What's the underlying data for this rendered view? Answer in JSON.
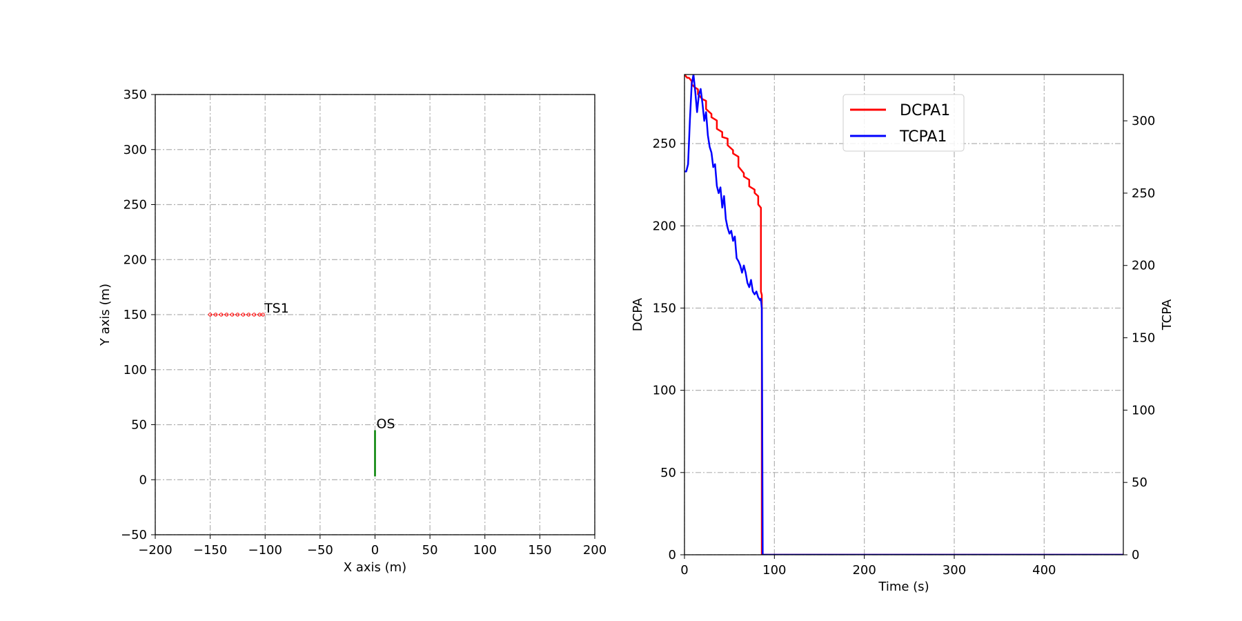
{
  "chart_data": [
    {
      "type": "line",
      "title": "",
      "xlabel": "X axis (m)",
      "ylabel": "Y axis (m)",
      "xlim": [
        -200,
        200
      ],
      "ylim": [
        -50,
        350
      ],
      "xticks": [
        -200,
        -150,
        -100,
        -50,
        0,
        50,
        100,
        150,
        200
      ],
      "yticks": [
        -50,
        0,
        50,
        100,
        150,
        200,
        250,
        300,
        350
      ],
      "grid": true,
      "series": [
        {
          "name": "TS1",
          "color": "#ff0000",
          "style": "dotted-markers",
          "x": [
            -150,
            -145,
            -140,
            -135,
            -130,
            -125,
            -120,
            -115,
            -110,
            -105,
            -102
          ],
          "y": [
            150,
            150,
            150,
            150,
            150,
            150,
            150,
            150,
            150,
            150,
            150
          ]
        },
        {
          "name": "OS",
          "color": "#008000",
          "style": "solid",
          "x": [
            0,
            0
          ],
          "y": [
            3,
            45
          ]
        }
      ],
      "annotations": [
        {
          "text": "TS1",
          "x": -102,
          "y": 150
        },
        {
          "text": "OS",
          "x": 0,
          "y": 45
        }
      ]
    },
    {
      "type": "line",
      "title": "",
      "xlabel": "Time (s)",
      "ylabel": "DCPA",
      "y2label": "TCPA",
      "xlim": [
        0,
        488
      ],
      "ylim": [
        0,
        292
      ],
      "y2lim": [
        0,
        332
      ],
      "xticks": [
        0,
        100,
        200,
        300,
        400
      ],
      "yticks": [
        0,
        50,
        100,
        150,
        200,
        250
      ],
      "y2ticks": [
        0,
        50,
        100,
        150,
        200,
        250,
        300
      ],
      "grid": true,
      "legend_position": "top-center",
      "series": [
        {
          "name": "DCPA1",
          "axis": "left",
          "color": "#ff0000",
          "x": [
            0,
            3,
            5,
            8,
            8,
            12,
            15,
            15,
            20,
            24,
            24,
            30,
            30,
            36,
            36,
            42,
            42,
            48,
            48,
            54,
            54,
            60,
            60,
            66,
            66,
            72,
            72,
            78,
            78,
            82,
            82,
            85,
            85,
            86,
            86,
            100,
            200,
            300,
            400,
            488
          ],
          "y": [
            292,
            290,
            290,
            288,
            286,
            284,
            283,
            280,
            277,
            276,
            271,
            268,
            266,
            264,
            259,
            257,
            254,
            253,
            249,
            246,
            244,
            242,
            236,
            232,
            230,
            228,
            224,
            222,
            220,
            218,
            213,
            211,
            160,
            158,
            0,
            0,
            0,
            0,
            0,
            0
          ]
        },
        {
          "name": "TCPA1",
          "axis": "right",
          "color": "#0000ff",
          "x": [
            0,
            2,
            4,
            6,
            8,
            10,
            12,
            14,
            16,
            18,
            20,
            22,
            24,
            26,
            28,
            30,
            32,
            34,
            36,
            38,
            40,
            42,
            44,
            46,
            48,
            50,
            52,
            54,
            56,
            58,
            60,
            62,
            64,
            66,
            68,
            70,
            72,
            74,
            76,
            78,
            80,
            82,
            84,
            85,
            86,
            87,
            100,
            200,
            300,
            400,
            488
          ],
          "y": [
            265,
            265,
            270,
            300,
            325,
            332,
            320,
            306,
            318,
            322,
            312,
            300,
            306,
            290,
            282,
            278,
            268,
            270,
            255,
            250,
            254,
            240,
            248,
            232,
            226,
            222,
            224,
            217,
            220,
            205,
            203,
            200,
            195,
            200,
            195,
            188,
            185,
            190,
            182,
            180,
            182,
            178,
            176,
            177,
            170,
            0,
            0,
            0,
            0,
            0,
            0
          ]
        }
      ]
    }
  ]
}
